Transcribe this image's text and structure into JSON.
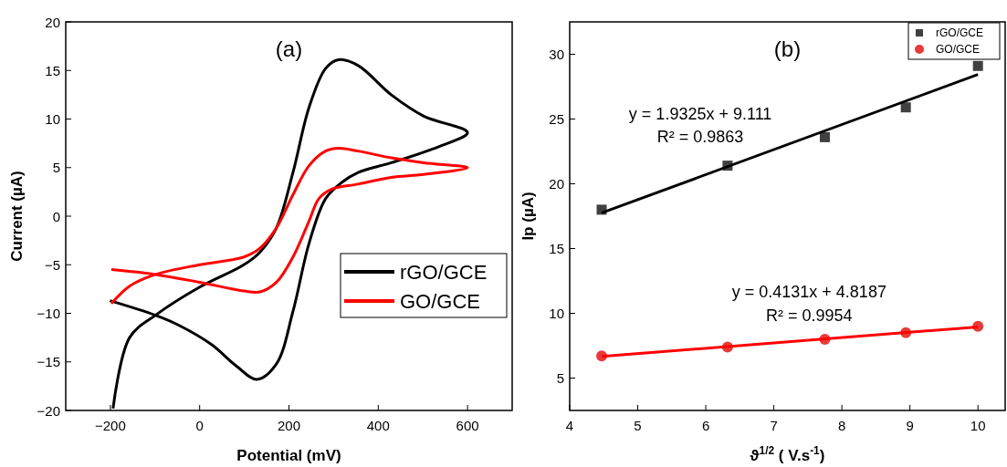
{
  "chart_data": [
    {
      "type": "line",
      "title": "(a)",
      "xlabel": "Potential (mV)",
      "ylabel": "Current (µA)",
      "xlim": [
        -300,
        700
      ],
      "xticks": [
        {
          "value": -200,
          "label": "−200"
        },
        0,
        200,
        400,
        600
      ],
      "ylim": [
        -20,
        20
      ],
      "yticks": [
        {
          "value": -20,
          "label": "−20"
        },
        {
          "value": -15,
          "label": "−15"
        },
        {
          "value": -10,
          "label": "−10"
        },
        {
          "value": -5,
          "label": "−5"
        },
        0,
        5,
        10,
        15,
        20
      ],
      "grid": false,
      "legend": "bottom right",
      "series": [
        {
          "name": "rGO/GCE",
          "color": "#000000",
          "x": [
            -194,
            -157,
            -99,
            0,
            99,
            135,
            172,
            209,
            245,
            282,
            311,
            355,
            429,
            502,
            600,
            538,
            429,
            355,
            319,
            282,
            245,
            209,
            172,
            128,
            84,
            26,
            -48,
            -99,
            -201
          ],
          "values": [
            -19.8,
            -12.5,
            -10.2,
            -7.3,
            -5,
            -3.7,
            -1.2,
            4.5,
            11.2,
            15.2,
            16.1,
            15.5,
            12.5,
            10.3,
            8.6,
            7.2,
            5.5,
            4.5,
            3.5,
            1.8,
            -2.8,
            -9.8,
            -15.2,
            -16.8,
            -15.5,
            -13.2,
            -11.2,
            -10.2,
            -8.7
          ]
        },
        {
          "name": "GO/GCE",
          "color": "#ff0000",
          "x": [
            -198,
            -157,
            -99,
            0,
            99,
            135,
            172,
            209,
            245,
            282,
            311,
            355,
            429,
            502,
            600,
            502,
            429,
            355,
            297,
            267,
            245,
            209,
            172,
            135,
            99,
            0,
            -99,
            -198
          ],
          "values": [
            -9,
            -7.2,
            -6,
            -5,
            -4.2,
            -3.3,
            -1.2,
            2.2,
            5.2,
            6.7,
            7,
            6.7,
            6,
            5.5,
            5,
            4.3,
            4,
            3.3,
            2.8,
            1.8,
            -0.5,
            -4.2,
            -6.8,
            -7.8,
            -7.7,
            -6.8,
            -6,
            -5.5
          ]
        }
      ]
    },
    {
      "type": "scatter",
      "title": "(b)",
      "xlabel": "ϑ$^{1/2}$ ( V.s$^{-1}$)",
      "ylabel": "Ip (µA)",
      "xlim": [
        4,
        10.4
      ],
      "xticks": [
        4,
        5,
        6,
        7,
        8,
        9,
        10
      ],
      "ylim": [
        2.5,
        32.5
      ],
      "yticks": [
        5,
        10,
        15,
        20,
        25,
        30
      ],
      "grid": false,
      "legend": "top right",
      "annotations": [
        "y = 1.9325x + 9.111",
        "R² = 0.9863",
        "y = 0.4131x + 4.8187",
        "R² = 0.9954"
      ],
      "series": [
        {
          "name": "rGO/GCE",
          "marker": "square",
          "color": "#404040",
          "x": [
            4.47,
            6.32,
            7.75,
            8.94,
            10
          ],
          "values": [
            18,
            21.4,
            23.6,
            25.9,
            29.1
          ]
        },
        {
          "name": "GO/GCE",
          "marker": "circle",
          "color": "#e83a3a",
          "x": [
            4.47,
            6.32,
            7.75,
            8.94,
            10
          ],
          "values": [
            6.7,
            7.4,
            8,
            8.5,
            9
          ]
        },
        {
          "type": "line",
          "color": "#000000",
          "x": [
            4.47,
            10
          ],
          "values": [
            17.75,
            28.44
          ]
        },
        {
          "type": "line",
          "color": "#ff0000",
          "x": [
            4.47,
            10
          ],
          "values": [
            6.67,
            8.95
          ]
        }
      ]
    }
  ]
}
